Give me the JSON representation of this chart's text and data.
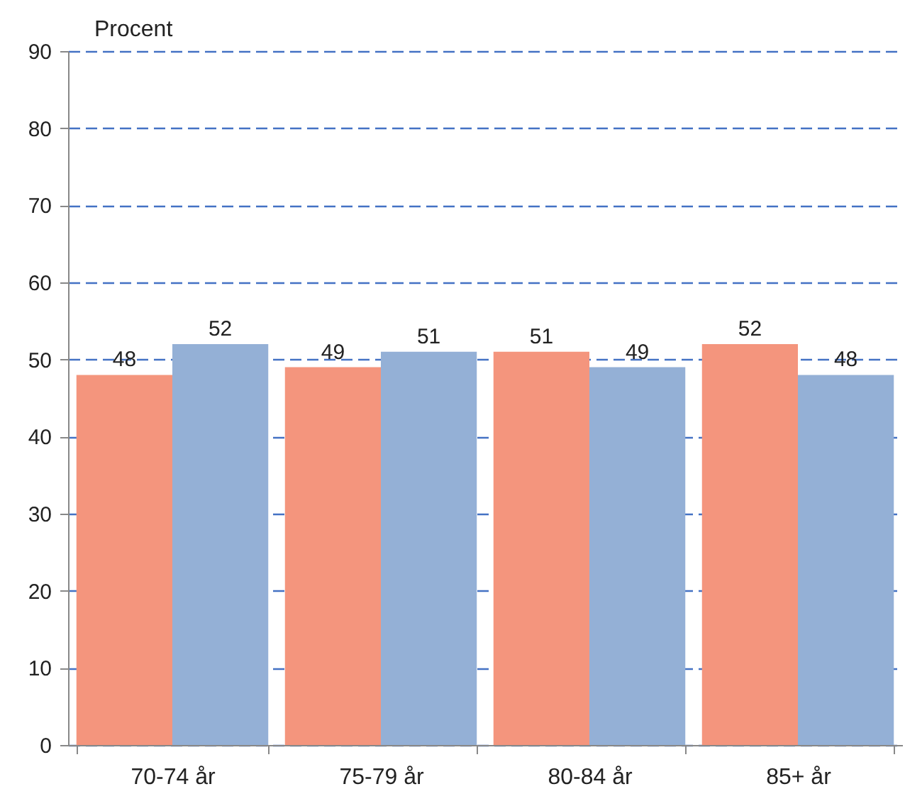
{
  "chart_data": {
    "type": "bar",
    "ylabel": "Procent",
    "categories": [
      "70-74 år",
      "75-79 år",
      "80-84 år",
      "85+ år"
    ],
    "series": [
      {
        "color": "#f4957d",
        "values": [
          48,
          49,
          51,
          52
        ]
      },
      {
        "color": "#94b0d6",
        "values": [
          52,
          51,
          49,
          48
        ]
      }
    ],
    "ylim": [
      0,
      90
    ],
    "yticks": [
      0,
      10,
      20,
      30,
      40,
      50,
      60,
      70,
      80,
      90
    ],
    "grid": "y",
    "data_labels": true
  }
}
